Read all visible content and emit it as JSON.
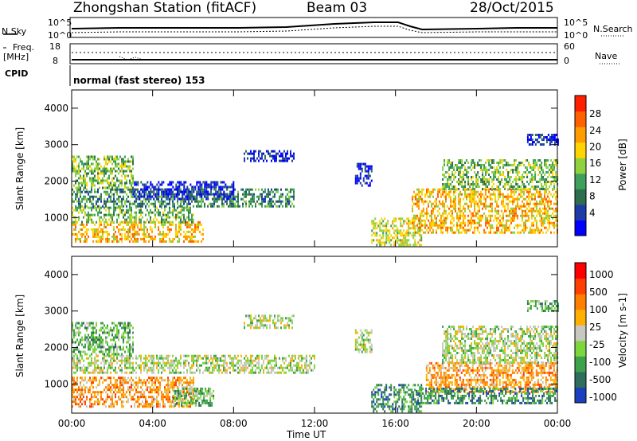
{
  "header": {
    "station_title": "Zhongshan Station (fitACF)",
    "beam": "Beam 03",
    "date": "28/Oct/2015"
  },
  "summary_panels": {
    "nsky_label": "N.Sky",
    "nsky_ticks": [
      "10^5",
      "10^0"
    ],
    "nsearch_label": "N.Search",
    "nsearch_ticks": [
      "10^5",
      "10^0"
    ],
    "freq_label_line1": "Freq.",
    "freq_label_line2": "[MHz]",
    "freq_ticks": [
      "18",
      "8"
    ],
    "nave_label": "Nave",
    "nave_ticks": [
      "60",
      "0"
    ],
    "cpid_label": "CPID",
    "cpid_value": "normal (fast stereo) 153"
  },
  "chart_data": [
    {
      "type": "heatmap",
      "name": "power",
      "ylabel": "Slant Range [km]",
      "xlabel": "",
      "x_ticks": [
        "00:00",
        "04:00",
        "08:00",
        "12:00",
        "16:00",
        "20:00",
        "00:00"
      ],
      "x_hours": [
        0,
        4,
        8,
        12,
        16,
        20,
        24
      ],
      "y_ticks": [
        1000,
        2000,
        3000,
        4000
      ],
      "ylim": [
        200,
        4500
      ],
      "xlim_hours": [
        0,
        24
      ],
      "colorbar": {
        "label": "Power [dB]",
        "ticks": [
          "4",
          "8",
          "12",
          "16",
          "20",
          "24",
          "28"
        ],
        "colors": [
          "#0000ff",
          "#1e3ca8",
          "#2e6e4e",
          "#3fa05a",
          "#8fd13f",
          "#ffd400",
          "#ff9c00",
          "#ff6000",
          "#ff2000"
        ]
      },
      "regions": [
        {
          "x0": 0.0,
          "x1": 6.5,
          "y0": 350,
          "y1": 900,
          "level": 6
        },
        {
          "x0": 0.0,
          "x1": 6.0,
          "y0": 900,
          "y1": 1300,
          "level": 4
        },
        {
          "x0": 0.0,
          "x1": 11.0,
          "y0": 1300,
          "y1": 1800,
          "level": 3
        },
        {
          "x0": 0.0,
          "x1": 3.0,
          "y0": 1800,
          "y1": 2700,
          "level": 4
        },
        {
          "x0": 3.0,
          "x1": 8.0,
          "y0": 1500,
          "y1": 2000,
          "level": 1
        },
        {
          "x0": 8.5,
          "x1": 11.0,
          "y0": 2550,
          "y1": 2850,
          "level": 1
        },
        {
          "x0": 14.0,
          "x1": 14.8,
          "y0": 1900,
          "y1": 2500,
          "level": 1
        },
        {
          "x0": 14.8,
          "x1": 17.3,
          "y0": 250,
          "y1": 1000,
          "level": 5
        },
        {
          "x0": 16.8,
          "x1": 24.0,
          "y0": 600,
          "y1": 1800,
          "level": 6
        },
        {
          "x0": 18.3,
          "x1": 24.0,
          "y0": 1800,
          "y1": 2600,
          "level": 4
        },
        {
          "x0": 22.5,
          "x1": 24.0,
          "y0": 3000,
          "y1": 3300,
          "level": 1
        }
      ]
    },
    {
      "type": "heatmap",
      "name": "velocity",
      "ylabel": "Slant Range [km]",
      "xlabel": "Time UT",
      "x_ticks": [
        "00:00",
        "04:00",
        "08:00",
        "12:00",
        "16:00",
        "20:00",
        "00:00"
      ],
      "x_hours": [
        0,
        4,
        8,
        12,
        16,
        20,
        24
      ],
      "y_ticks": [
        1000,
        2000,
        3000,
        4000
      ],
      "ylim": [
        200,
        4500
      ],
      "xlim_hours": [
        0,
        24
      ],
      "colorbar": {
        "label": "Velocity [m s-1]",
        "ticks": [
          "1000",
          "500",
          "100",
          "25",
          "-25",
          "-100",
          "-500",
          "-1000"
        ],
        "colors": [
          "#1b3fbf",
          "#2d6f5c",
          "#3ea24a",
          "#7dd63c",
          "#c8c8c0",
          "#ffb000",
          "#ff8000",
          "#ff4000",
          "#ff0000"
        ]
      },
      "regions": [
        {
          "x0": 0.0,
          "x1": 6.0,
          "y0": 350,
          "y1": 1200,
          "level": 6
        },
        {
          "x0": 5.0,
          "x1": 7.0,
          "y0": 400,
          "y1": 900,
          "level": 3
        },
        {
          "x0": 0.0,
          "x1": 12.0,
          "y0": 1300,
          "y1": 1800,
          "level": 4
        },
        {
          "x0": 0.0,
          "x1": 3.0,
          "y0": 1800,
          "y1": 2700,
          "level": 3
        },
        {
          "x0": 8.5,
          "x1": 11.0,
          "y0": 2550,
          "y1": 2900,
          "level": 4
        },
        {
          "x0": 14.0,
          "x1": 14.8,
          "y0": 1900,
          "y1": 2500,
          "level": 4
        },
        {
          "x0": 14.8,
          "x1": 17.3,
          "y0": 250,
          "y1": 1000,
          "level": 2
        },
        {
          "x0": 17.5,
          "x1": 24.0,
          "y0": 800,
          "y1": 1600,
          "level": 6
        },
        {
          "x0": 17.0,
          "x1": 24.0,
          "y0": 500,
          "y1": 900,
          "level": 2
        },
        {
          "x0": 18.3,
          "x1": 24.0,
          "y0": 1600,
          "y1": 2600,
          "level": 4
        },
        {
          "x0": 22.5,
          "x1": 24.0,
          "y0": 3000,
          "y1": 3300,
          "level": 3
        }
      ]
    }
  ]
}
